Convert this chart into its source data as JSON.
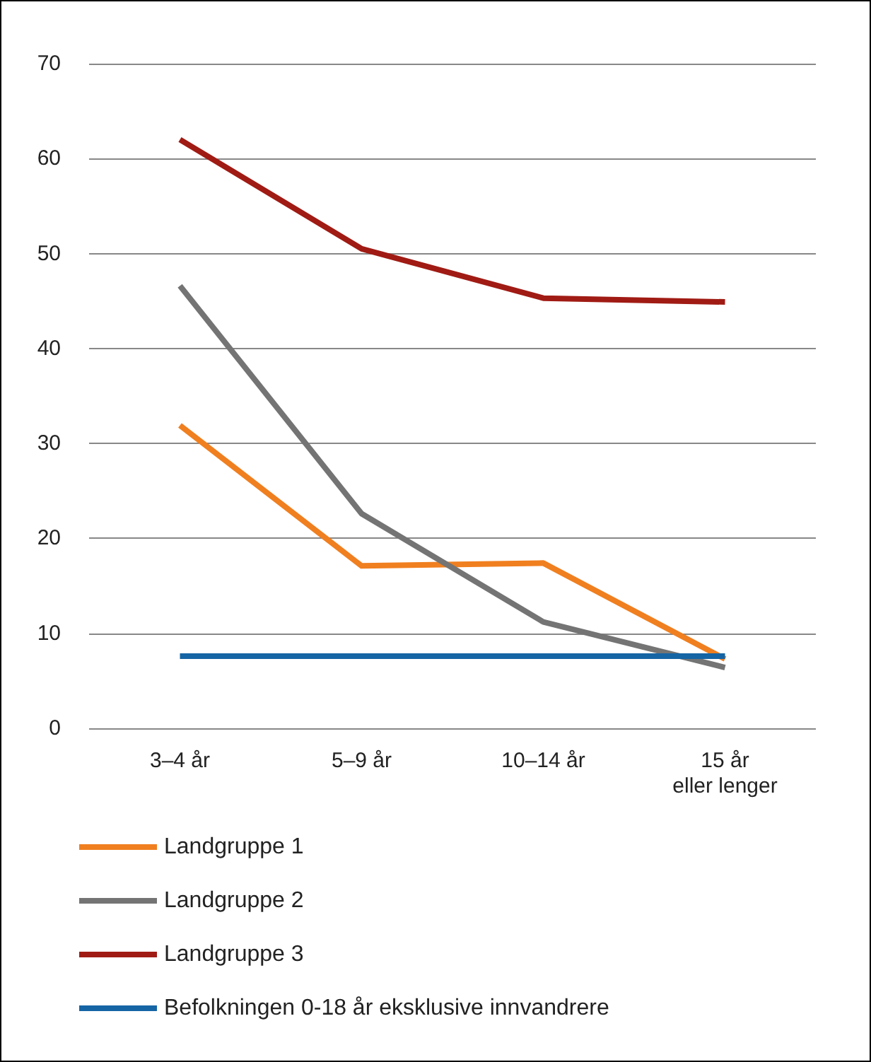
{
  "chart_data": {
    "type": "line",
    "categories": [
      "3–4 år",
      "5–9 år",
      "10–14 år",
      "15 år\neller lenger"
    ],
    "series": [
      {
        "name": "Landgruppe 1",
        "color": "#f07f1f",
        "values": [
          31.9,
          17.1,
          17.4,
          7.3
        ]
      },
      {
        "name": "Landgruppe 2",
        "color": "#747474",
        "values": [
          46.6,
          22.6,
          11.2,
          6.4
        ]
      },
      {
        "name": "Landgruppe 3",
        "color": "#a01b14",
        "values": [
          62,
          50.5,
          45.3,
          44.9
        ]
      },
      {
        "name": "Befolkningen 0-18 år eksklusive innvandrere",
        "color": "#1565a5",
        "values": [
          7.6,
          7.6,
          7.6,
          7.6
        ]
      }
    ],
    "ylim": [
      0,
      70
    ],
    "yticks": [
      0,
      10,
      20,
      30,
      40,
      50,
      60,
      70
    ],
    "grid": "y",
    "legend": "bottom",
    "marker": "none",
    "line_style": "solid"
  }
}
